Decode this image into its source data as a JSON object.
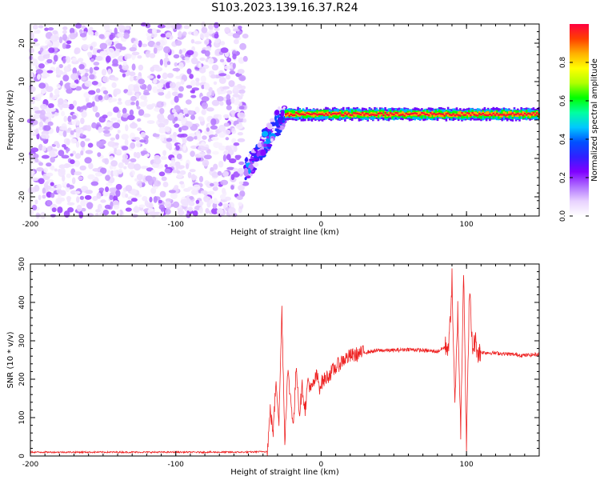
{
  "figure_title": "S103.2023.139.16.37.R24",
  "chart_data": [
    {
      "type": "heatmap",
      "xlabel": "Height of straight line (km)",
      "ylabel": "Frequency (Hz)",
      "xlim": [
        -200,
        150
      ],
      "ylim": [
        -25,
        25
      ],
      "xticks": [
        -200,
        -100,
        0,
        100
      ],
      "yticks": [
        -20,
        -10,
        0,
        10,
        20
      ],
      "colorbar": {
        "label": "Normalized spectral amplitude",
        "range": [
          0,
          1
        ],
        "ticks": [
          0.0,
          0.2,
          0.4,
          0.6,
          0.8
        ],
        "tick_labels": [
          "0.0",
          "0.2",
          "0.4",
          "0.6",
          "0.8"
        ],
        "colormap": [
          "#ffffff",
          "#e8d2ff",
          "#b070ff",
          "#8000ff",
          "#3020ff",
          "#0050ff",
          "#00c8ff",
          "#00ffa0",
          "#00ff00",
          "#b0ff00",
          "#ffff00",
          "#ffb000",
          "#ff4000",
          "#ff0040"
        ]
      },
      "regions": [
        {
          "name": "noise",
          "x": [
            -200,
            -52
          ],
          "y": [
            -25,
            25
          ],
          "amplitude": [
            0.0,
            0.2
          ]
        },
        {
          "name": "transition",
          "x": [
            -52,
            -25
          ],
          "y_start": -13,
          "y_end": 2,
          "amplitude_peak": 0.4
        },
        {
          "name": "signal_band",
          "x": [
            -25,
            150
          ],
          "y_center": 1.5,
          "half_width": 1.5,
          "amplitude_peak": 1.0
        }
      ]
    },
    {
      "type": "line",
      "xlabel": "Height of straight line (km)",
      "ylabel": "SNR (10 * v/v)",
      "xlim": [
        -200,
        150
      ],
      "ylim": [
        0,
        500
      ],
      "xticks": [
        -200,
        -100,
        0,
        100
      ],
      "yticks": [
        0,
        100,
        200,
        300,
        400,
        500
      ],
      "series": [
        {
          "color": "#ee2222",
          "x": [
            -200,
            -150,
            -100,
            -50,
            -37,
            -35,
            -33,
            -31,
            -29,
            -27,
            -25,
            -23,
            -21,
            -19,
            -17,
            -15,
            -13,
            -11,
            -9,
            -7,
            -5,
            -3,
            -1,
            0,
            5,
            10,
            15,
            20,
            25,
            30,
            40,
            50,
            60,
            70,
            80,
            88,
            90,
            92,
            94,
            96,
            98,
            100,
            102,
            104,
            106,
            108,
            110,
            120,
            130,
            140,
            150
          ],
          "values": [
            10,
            10,
            10,
            10,
            12,
            120,
            60,
            200,
            90,
            380,
            40,
            220,
            150,
            80,
            240,
            110,
            180,
            120,
            200,
            170,
            190,
            210,
            180,
            190,
            210,
            230,
            250,
            260,
            265,
            270,
            275,
            275,
            278,
            275,
            272,
            290,
            460,
            120,
            380,
            60,
            500,
            20,
            440,
            280,
            300,
            270,
            270,
            268,
            265,
            262,
            265
          ]
        }
      ]
    }
  ]
}
